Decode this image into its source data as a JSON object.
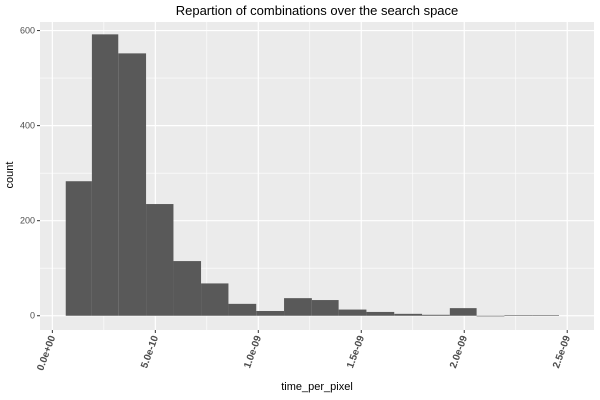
{
  "chart_data": {
    "type": "bar",
    "title": "Repartion of combinations over the search space",
    "xlabel": "time_per_pixel",
    "ylabel": "count",
    "xlim": [
      -6e-11,
      2.63e-09
    ],
    "ylim": [
      -30,
      618
    ],
    "x_ticks": [
      {
        "value": 0,
        "label": "0.0e+00"
      },
      {
        "value": 5e-10,
        "label": "5.0e-10"
      },
      {
        "value": 1e-09,
        "label": "1.0e-09"
      },
      {
        "value": 1.5e-09,
        "label": "1.5e-09"
      },
      {
        "value": 2e-09,
        "label": "2.0e-09"
      },
      {
        "value": 2.5e-09,
        "label": "2.5e-09"
      }
    ],
    "y_ticks": [
      {
        "value": 0,
        "label": "0"
      },
      {
        "value": 200,
        "label": "200"
      },
      {
        "value": 400,
        "label": "400"
      },
      {
        "value": 600,
        "label": "600"
      }
    ],
    "bins": [
      {
        "x0": 6.5e-11,
        "x1": 1.92e-10,
        "count": 283
      },
      {
        "x0": 1.92e-10,
        "x1": 3.2e-10,
        "count": 592
      },
      {
        "x0": 3.2e-10,
        "x1": 4.55e-10,
        "count": 552
      },
      {
        "x0": 4.55e-10,
        "x1": 5.88e-10,
        "count": 235
      },
      {
        "x0": 5.88e-10,
        "x1": 7.22e-10,
        "count": 115
      },
      {
        "x0": 7.22e-10,
        "x1": 8.55e-10,
        "count": 68
      },
      {
        "x0": 8.55e-10,
        "x1": 9.9e-10,
        "count": 25
      },
      {
        "x0": 9.9e-10,
        "x1": 1.125e-09,
        "count": 10
      },
      {
        "x0": 1.125e-09,
        "x1": 1.26e-09,
        "count": 37
      },
      {
        "x0": 1.26e-09,
        "x1": 1.39e-09,
        "count": 33
      },
      {
        "x0": 1.39e-09,
        "x1": 1.525e-09,
        "count": 13
      },
      {
        "x0": 1.525e-09,
        "x1": 1.66e-09,
        "count": 8
      },
      {
        "x0": 1.66e-09,
        "x1": 1.795e-09,
        "count": 4
      },
      {
        "x0": 1.795e-09,
        "x1": 1.93e-09,
        "count": 2
      },
      {
        "x0": 1.93e-09,
        "x1": 2.06e-09,
        "count": 16
      },
      {
        "x0": 2.06e-09,
        "x1": 2.195e-09,
        "count": 0
      },
      {
        "x0": 2.195e-09,
        "x1": 2.33e-09,
        "count": 1
      },
      {
        "x0": 2.33e-09,
        "x1": 2.46e-09,
        "count": 1
      }
    ],
    "grid": true,
    "bar_color": "#595959",
    "panel_color": "#ebebeb",
    "grid_color": "#ffffff"
  }
}
